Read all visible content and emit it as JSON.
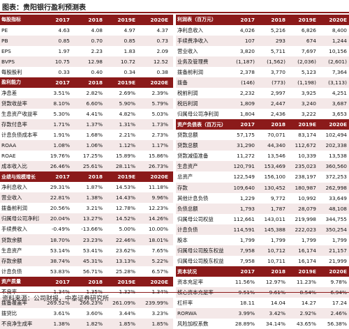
{
  "title": "图表：贵阳银行盈利预测表",
  "source": "资料来源：公司财报，中泰证券研究所",
  "left_sections": [
    {
      "header": "每股指标",
      "columns": [
        "2017",
        "2018",
        "2019E",
        "2020E"
      ],
      "rows": [
        {
          "label": "PE",
          "values": [
            "4.63",
            "4.08",
            "4.97",
            "4.37"
          ]
        },
        {
          "label": "PB",
          "values": [
            "0.85",
            "0.70",
            "0.85",
            "0.73"
          ]
        },
        {
          "label": "EPS",
          "values": [
            "1.97",
            "2.23",
            "1.83",
            "2.09"
          ]
        },
        {
          "label": "BVPS",
          "values": [
            "10.75",
            "12.98",
            "10.72",
            "12.52"
          ]
        },
        {
          "label": "每股股利",
          "values": [
            "0.33",
            "0.40",
            "0.34",
            "0.38"
          ]
        }
      ]
    },
    {
      "header": "盈利能力",
      "columns": [
        "2017",
        "2018",
        "2019E",
        "2020E"
      ],
      "rows": [
        {
          "label": "净息差",
          "values": [
            "3.51%",
            "2.82%",
            "2.69%",
            "2.39%"
          ]
        },
        {
          "label": "贷款收益率",
          "values": [
            "8.10%",
            "6.60%",
            "5.90%",
            "5.79%"
          ]
        },
        {
          "label": "生息资产收益率",
          "values": [
            "5.30%",
            "4.41%",
            "4.82%",
            "5.03%"
          ]
        },
        {
          "label": "存款付息率",
          "values": [
            "1.71%",
            "1.37%",
            "1.31%",
            "1.73%"
          ]
        },
        {
          "label": "计息负债成本率",
          "values": [
            "1.91%",
            "1.68%",
            "2.21%",
            "2.73%"
          ]
        },
        {
          "label": "ROAA",
          "values": [
            "1.08%",
            "1.06%",
            "1.12%",
            "1.17%"
          ]
        },
        {
          "label": "ROAE",
          "values": [
            "19.76%",
            "17.25%",
            "15.89%",
            "15.86%"
          ]
        },
        {
          "label": "成本收入比",
          "values": [
            "26.46%",
            "25.61%",
            "28.11%",
            "26.73%"
          ]
        }
      ]
    },
    {
      "header": "业绩与规模增长",
      "columns": [
        "2017",
        "2018",
        "2019E",
        "2020E"
      ],
      "rows": [
        {
          "label": "净利息收入",
          "values": [
            "29.31%",
            "1.87%",
            "14.53%",
            "11.18%"
          ]
        },
        {
          "label": "营业收入",
          "values": [
            "22.81%",
            "1.38%",
            "14.43%",
            "9.96%"
          ]
        },
        {
          "label": "拨备前利润",
          "values": [
            "20.56%",
            "3.21%",
            "12.78%",
            "12.23%"
          ]
        },
        {
          "label": "归属母公司净利润",
          "values": [
            "20.04%",
            "13.27%",
            "14.52%",
            "14.26%"
          ]
        },
        {
          "label": "手续费收入",
          "values": [
            "-0.49%",
            "-13.66%",
            "5.00%",
            "10.00%"
          ]
        },
        {
          "label": "贷款余额",
          "values": [
            "18.70%",
            "23.23%",
            "22.46%",
            "18.01%"
          ]
        },
        {
          "label": "生息资产",
          "values": [
            "53.14%",
            "53.41%",
            "23.62%",
            "7.65%"
          ]
        },
        {
          "label": "存款余额",
          "values": [
            "38.74%",
            "45.31%",
            "13.13%",
            "5.22%"
          ]
        },
        {
          "label": "计息负债",
          "values": [
            "53.83%",
            "56.71%",
            "25.28%",
            "6.57%"
          ]
        }
      ]
    },
    {
      "header": "资产质量",
      "columns": [
        "2017",
        "2018",
        "2019E",
        "2020E"
      ],
      "rows": [
        {
          "label": "不良率",
          "values": [
            "1.34%",
            "1.35%",
            "1.32%",
            "1.34%"
          ]
        },
        {
          "label": "拨备覆盖率",
          "values": [
            "269.52%",
            "266.23%",
            "261.09%",
            "239.99%"
          ]
        },
        {
          "label": "拨贷比",
          "values": [
            "3.61%",
            "3.60%",
            "3.44%",
            "3.23%"
          ]
        },
        {
          "label": "不良净生成率",
          "values": [
            "1.38%",
            "1.82%",
            "1.85%",
            "1.85%"
          ]
        }
      ]
    }
  ],
  "right_sections": [
    {
      "header": "利润表（百万元）",
      "columns": [
        "2017",
        "2018",
        "2019E",
        "2020E"
      ],
      "rows": [
        {
          "label": "净利息收入",
          "values": [
            "4,026",
            "5,216",
            "6,826",
            "8,400"
          ]
        },
        {
          "label": "手续费净收入",
          "values": [
            "107",
            "293",
            "674",
            "1,244"
          ]
        },
        {
          "label": "营业收入",
          "values": [
            "3,820",
            "5,711",
            "7,697",
            "10,156"
          ]
        },
        {
          "label": "业务及管理费",
          "values": [
            "(1,187)",
            "(1,562)",
            "(2,036)",
            "(2,601)"
          ]
        },
        {
          "label": "拨备前利润",
          "values": [
            "2,378",
            "3,770",
            "5,123",
            "7,364"
          ]
        },
        {
          "label": "拨备",
          "values": [
            "(146)",
            "(773)",
            "(1,198)",
            "(3,113)"
          ]
        },
        {
          "label": "税前利润",
          "values": [
            "2,232",
            "2,997",
            "3,925",
            "4,251"
          ]
        },
        {
          "label": "税后利润",
          "values": [
            "1,809",
            "2,447",
            "3,240",
            "3,687"
          ]
        },
        {
          "label": "归属母公司净利润",
          "values": [
            "1,804",
            "2,436",
            "3,222",
            "3,653"
          ]
        }
      ]
    },
    {
      "header": "资产负债表（百万元）",
      "columns": [
        "2017",
        "2018",
        "2019E",
        "2020E"
      ],
      "rows": [
        {
          "label": "贷款总额",
          "values": [
            "57,175",
            "70,071",
            "83,174",
            "102,494"
          ]
        },
        {
          "label": "贷款总额",
          "values": [
            "31,290",
            "44,340",
            "112,672",
            "202,338"
          ]
        },
        {
          "label": "贷款减值准备",
          "values": [
            "11,272",
            "13,546",
            "10,339",
            "13,538"
          ]
        },
        {
          "label": "生息资产",
          "values": [
            "120,791",
            "153,469",
            "235,023",
            "360,560"
          ]
        },
        {
          "label": "总资产",
          "values": [
            "122,549",
            "156,100",
            "238,197",
            "372,253"
          ]
        },
        {
          "label": "存款",
          "values": [
            "109,640",
            "130,452",
            "180,987",
            "262,998"
          ]
        },
        {
          "label": "其他计息负债",
          "values": [
            "1,229",
            "9,772",
            "10,992",
            "33,649"
          ]
        },
        {
          "label": "负债总额",
          "values": [
            "1,793",
            "1,787",
            "28,079",
            "48,108"
          ]
        },
        {
          "label": "归属母公司权益",
          "values": [
            "112,661",
            "143,011",
            "219,998",
            "344,755"
          ]
        },
        {
          "label": "计息负债",
          "values": [
            "114,591",
            "145,388",
            "222,023",
            "350,254"
          ]
        },
        {
          "label": "股本",
          "values": [
            "1,799",
            "1,799",
            "1,799",
            "1,799"
          ]
        },
        {
          "label": "归属母公司股东权益",
          "values": [
            "7,958",
            "10,712",
            "16,174",
            "21,157"
          ]
        },
        {
          "label": "归属母公司股东权益",
          "values": [
            "7,958",
            "10,711",
            "16,174",
            "21,999"
          ]
        }
      ]
    },
    {
      "header": "资本状况",
      "columns": [
        "2017",
        "2018",
        "2019E",
        "2020E"
      ],
      "rows": [
        {
          "label": "资本充足率",
          "values": [
            "11.56%",
            "12.97%",
            "11.23%",
            "9.78%"
          ]
        },
        {
          "label": "核心资本充足率",
          "values": [
            "9.51%",
            "9.61%",
            "8.54%",
            "6.94%"
          ]
        },
        {
          "label": "杠杆率",
          "values": [
            "18.11",
            "14.04",
            "14.27",
            "17.24"
          ]
        },
        {
          "label": "RORWA",
          "values": [
            "3.99%",
            "3.42%",
            "2.92%",
            "2.46%"
          ]
        },
        {
          "label": "风险加权系数",
          "values": [
            "28.89%",
            "34.14%",
            "43.65%",
            "56.38%"
          ]
        }
      ]
    }
  ]
}
